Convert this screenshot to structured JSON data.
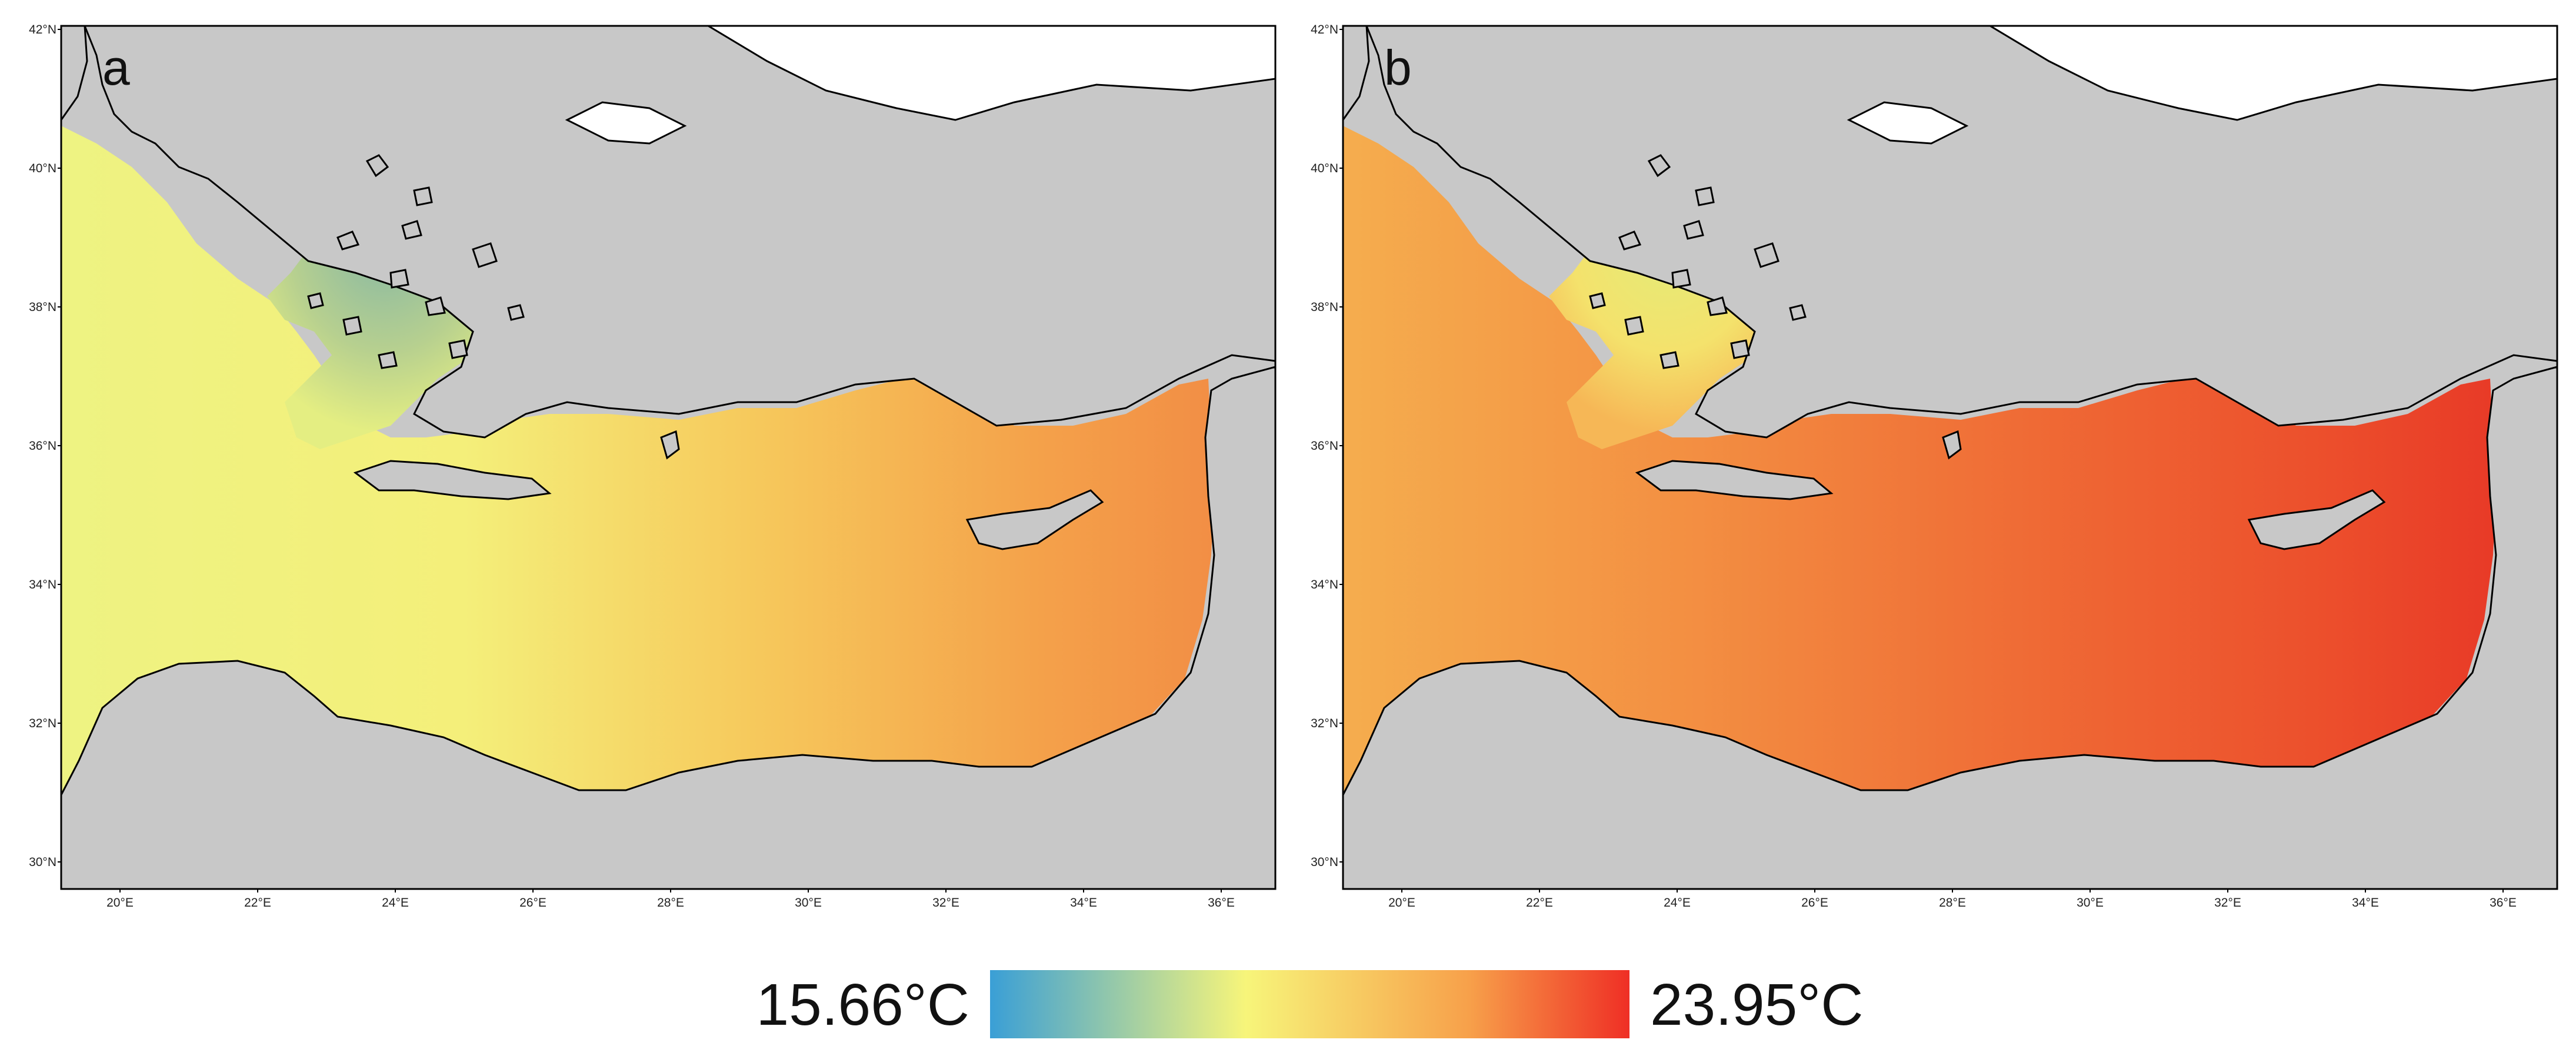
{
  "figure": {
    "panels": [
      {
        "id": "a",
        "label": "a"
      },
      {
        "id": "b",
        "label": "b"
      }
    ],
    "lat_ticks": [
      "42°N",
      "40°N",
      "38°N",
      "36°N",
      "34°N",
      "32°N",
      "30°N"
    ],
    "lon_ticks": [
      "20°E",
      "22°E",
      "24°E",
      "26°E",
      "28°E",
      "30°E",
      "32°E",
      "34°E",
      "36°E"
    ],
    "colorbar": {
      "min_label": "15.66°C",
      "max_label": "23.95°C",
      "min_value": 15.66,
      "max_value": 23.95,
      "colors": [
        "#3a9fd6",
        "#f7f57a",
        "#f7a04a",
        "#ef2f25"
      ]
    },
    "colors": {
      "land": "#c8c8c8",
      "coast": "#000000",
      "no_data": "#ffffff"
    }
  }
}
